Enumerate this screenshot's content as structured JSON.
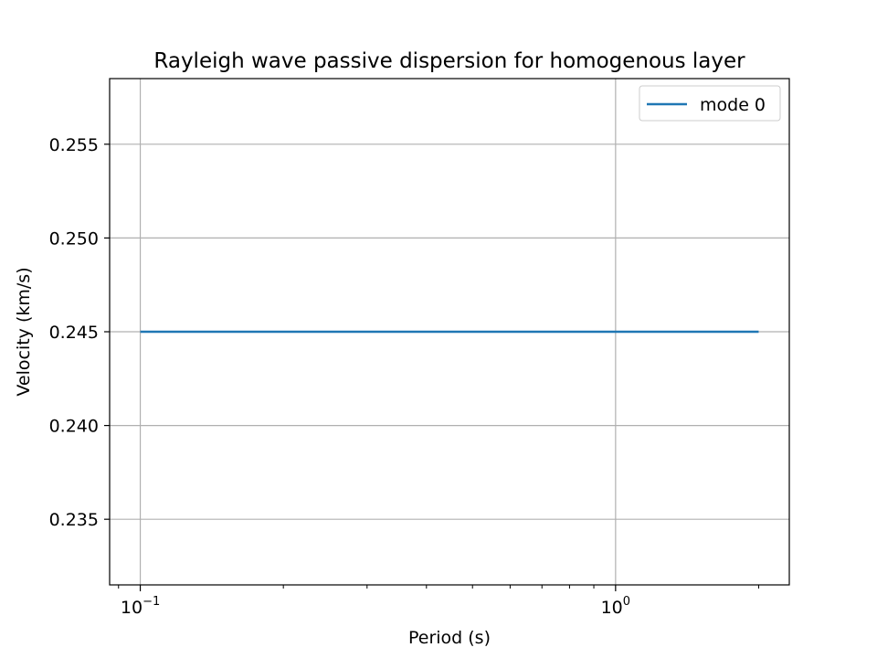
{
  "chart_data": {
    "type": "line",
    "title": "Rayleigh wave passive dispersion for homogenous layer",
    "xlabel": "Period (s)",
    "ylabel": "Velocity (km/s)",
    "xscale": "log",
    "xlim": [
      0.0862,
      2.32
    ],
    "ylim": [
      0.2315,
      0.2585
    ],
    "x_major_ticks": [
      {
        "value": 0.1,
        "base": "10",
        "exp": "−1"
      },
      {
        "value": 1,
        "base": "10",
        "exp": "0"
      }
    ],
    "y_ticks": [
      {
        "value": 0.235,
        "label": "0.235"
      },
      {
        "value": 0.24,
        "label": "0.240"
      },
      {
        "value": 0.245,
        "label": "0.245"
      },
      {
        "value": 0.25,
        "label": "0.250"
      },
      {
        "value": 0.255,
        "label": "0.255"
      }
    ],
    "grid": true,
    "legend_position": "top-right",
    "series": [
      {
        "name": "mode 0",
        "color": "#1f77b4",
        "x": [
          0.1,
          0.2,
          0.5,
          1.0,
          2.0
        ],
        "y": [
          0.245,
          0.245,
          0.245,
          0.245,
          0.245
        ]
      }
    ]
  }
}
